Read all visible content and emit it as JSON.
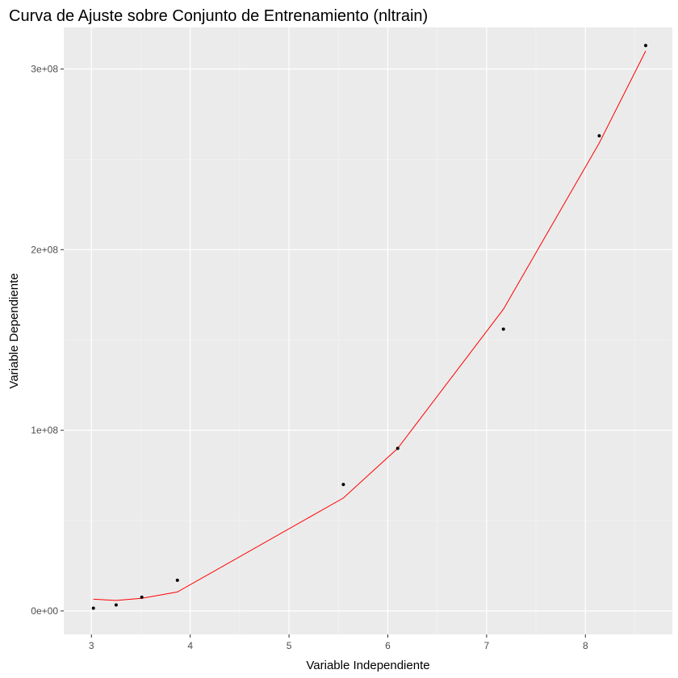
{
  "chart_data": {
    "type": "scatter",
    "title": "Curva de Ajuste sobre Conjunto de Entrenamiento (nltrain)",
    "xlabel": "Variable Independiente",
    "ylabel": "Variable Dependiente",
    "xlim": [
      2.72,
      8.88
    ],
    "ylim": [
      -13000000,
      323000000
    ],
    "x_ticks": [
      3,
      4,
      5,
      6,
      7,
      8
    ],
    "x_tick_labels": [
      "3",
      "4",
      "5",
      "6",
      "7",
      "8"
    ],
    "x_minor_ticks": [
      3.5,
      4.5,
      5.5,
      6.5,
      7.5,
      8.5
    ],
    "y_ticks": [
      0,
      100000000,
      200000000,
      300000000
    ],
    "y_tick_labels": [
      "0e+00",
      "1e+08",
      "2e+08",
      "3e+08"
    ],
    "y_minor_ticks": [
      50000000,
      150000000,
      250000000
    ],
    "grid": true,
    "series": [
      {
        "kind": "points",
        "color": "#000000",
        "x": [
          3.02,
          3.25,
          3.51,
          3.87,
          5.55,
          6.1,
          7.17,
          8.14,
          8.61
        ],
        "y": [
          1500000,
          3300000,
          7600000,
          17000000,
          70000000,
          90000000,
          156000000,
          263000000,
          313000000
        ]
      },
      {
        "kind": "fitted-line",
        "color": "#ff0000",
        "x": [
          3.02,
          3.25,
          3.51,
          3.87,
          5.55,
          6.1,
          7.17,
          8.14,
          8.61
        ],
        "y": [
          6500000,
          5800000,
          7000000,
          10500000,
          62500000,
          90000000,
          167000000,
          259000000,
          310000000
        ]
      }
    ],
    "colors": {
      "panel_background": "#ebebeb",
      "grid_major": "#ffffff",
      "axis_text": "#4d4d4d",
      "title_text": "#000000"
    }
  }
}
